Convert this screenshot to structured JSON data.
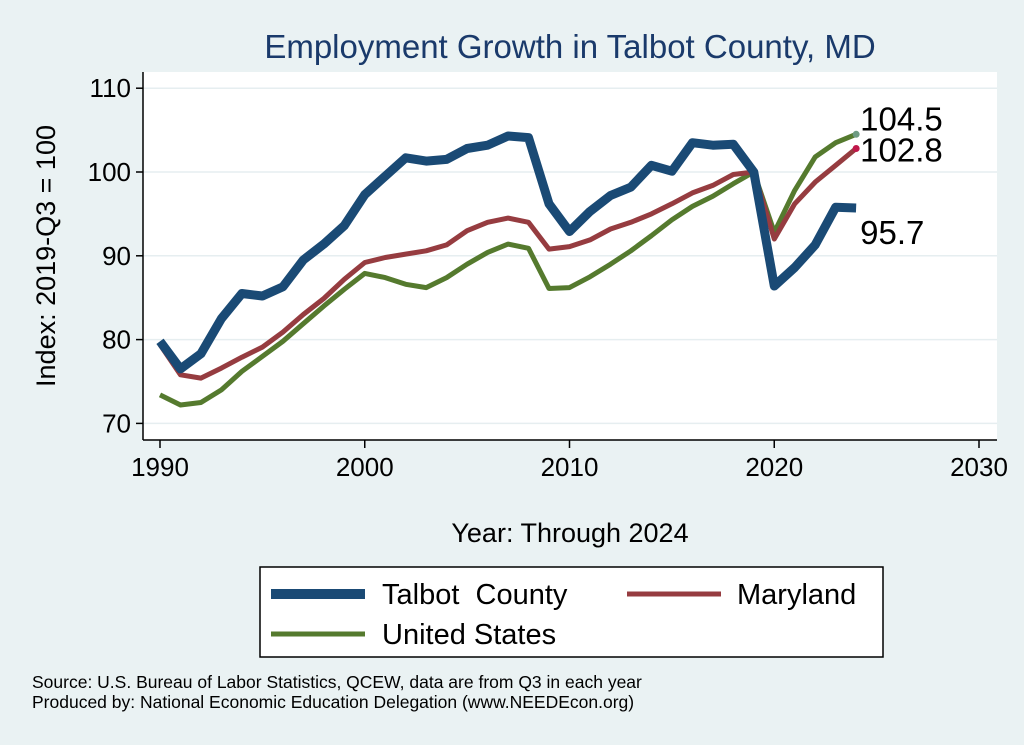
{
  "chart_data": {
    "type": "line",
    "title": "Employment Growth in Talbot County, MD",
    "xlabel": "Year: Through 2024",
    "ylabel": "Index: 2019-Q3 = 100",
    "xlim": [
      1990,
      2030
    ],
    "ylim": [
      68,
      111
    ],
    "xticks": [
      "1990",
      "2000",
      "2010",
      "2020",
      "2030"
    ],
    "yticks": [
      "70",
      "80",
      "90",
      "100",
      "110"
    ],
    "grid": "horizontal",
    "legend_position": "bottom",
    "series": [
      {
        "name": "Talbot  County",
        "color": "#1a4a75",
        "x": [
          1990,
          1991,
          1992,
          1993,
          1994,
          1995,
          1996,
          1997,
          1998,
          1999,
          2000,
          2001,
          2002,
          2003,
          2004,
          2005,
          2006,
          2007,
          2008,
          2009,
          2010,
          2011,
          2012,
          2013,
          2014,
          2015,
          2016,
          2017,
          2018,
          2019,
          2020,
          2021,
          2022,
          2023,
          2024
        ],
        "values": [
          79.8,
          76.5,
          78.3,
          82.5,
          85.5,
          85.2,
          86.3,
          89.5,
          91.4,
          93.6,
          97.3,
          99.5,
          101.7,
          101.3,
          101.5,
          102.8,
          103.2,
          104.3,
          104.1,
          96.2,
          92.9,
          95.3,
          97.2,
          98.2,
          100.8,
          100.1,
          103.5,
          103.2,
          103.3,
          100.0,
          86.4,
          88.6,
          91.3,
          95.8,
          95.7
        ],
        "end_label": "95.7"
      },
      {
        "name": "Maryland",
        "color": "#963c40",
        "x": [
          1990,
          1991,
          1992,
          1993,
          1994,
          1995,
          1996,
          1997,
          1998,
          1999,
          2000,
          2001,
          2002,
          2003,
          2004,
          2005,
          2006,
          2007,
          2008,
          2009,
          2010,
          2011,
          2012,
          2013,
          2014,
          2015,
          2016,
          2017,
          2018,
          2019,
          2020,
          2021,
          2022,
          2023,
          2024
        ],
        "values": [
          79.4,
          75.8,
          75.4,
          76.6,
          77.9,
          79.1,
          80.9,
          83.0,
          84.9,
          87.2,
          89.2,
          89.8,
          90.2,
          90.6,
          91.3,
          93.0,
          94.0,
          94.5,
          94.0,
          90.8,
          91.1,
          91.9,
          93.2,
          94.0,
          95.0,
          96.2,
          97.5,
          98.4,
          99.7,
          100.0,
          92.0,
          96.2,
          98.8,
          100.8,
          102.8
        ],
        "end_label": "102.8",
        "end_marker_color": "#c0174a"
      },
      {
        "name": "United States",
        "color": "#557a2e",
        "x": [
          1990,
          1991,
          1992,
          1993,
          1994,
          1995,
          1996,
          1997,
          1998,
          1999,
          2000,
          2001,
          2002,
          2003,
          2004,
          2005,
          2006,
          2007,
          2008,
          2009,
          2010,
          2011,
          2012,
          2013,
          2014,
          2015,
          2016,
          2017,
          2018,
          2019,
          2020,
          2021,
          2022,
          2023,
          2024
        ],
        "values": [
          73.4,
          72.2,
          72.5,
          74.0,
          76.2,
          78.0,
          79.8,
          81.9,
          84.0,
          86.0,
          87.9,
          87.4,
          86.6,
          86.2,
          87.4,
          89.0,
          90.4,
          91.4,
          90.9,
          86.1,
          86.2,
          87.5,
          89.0,
          90.6,
          92.4,
          94.3,
          95.9,
          97.1,
          98.6,
          100.0,
          92.8,
          97.8,
          101.8,
          103.5,
          104.5
        ],
        "end_label": "104.5",
        "end_marker_color": "#6e9b82"
      }
    ]
  },
  "footnotes": {
    "source": "Source: U.S. Bureau of Labor Statistics, QCEW, data are from Q3 in each year",
    "produced": "Produced by: National Economic Education Delegation (www.NEEDEcon.org)"
  }
}
